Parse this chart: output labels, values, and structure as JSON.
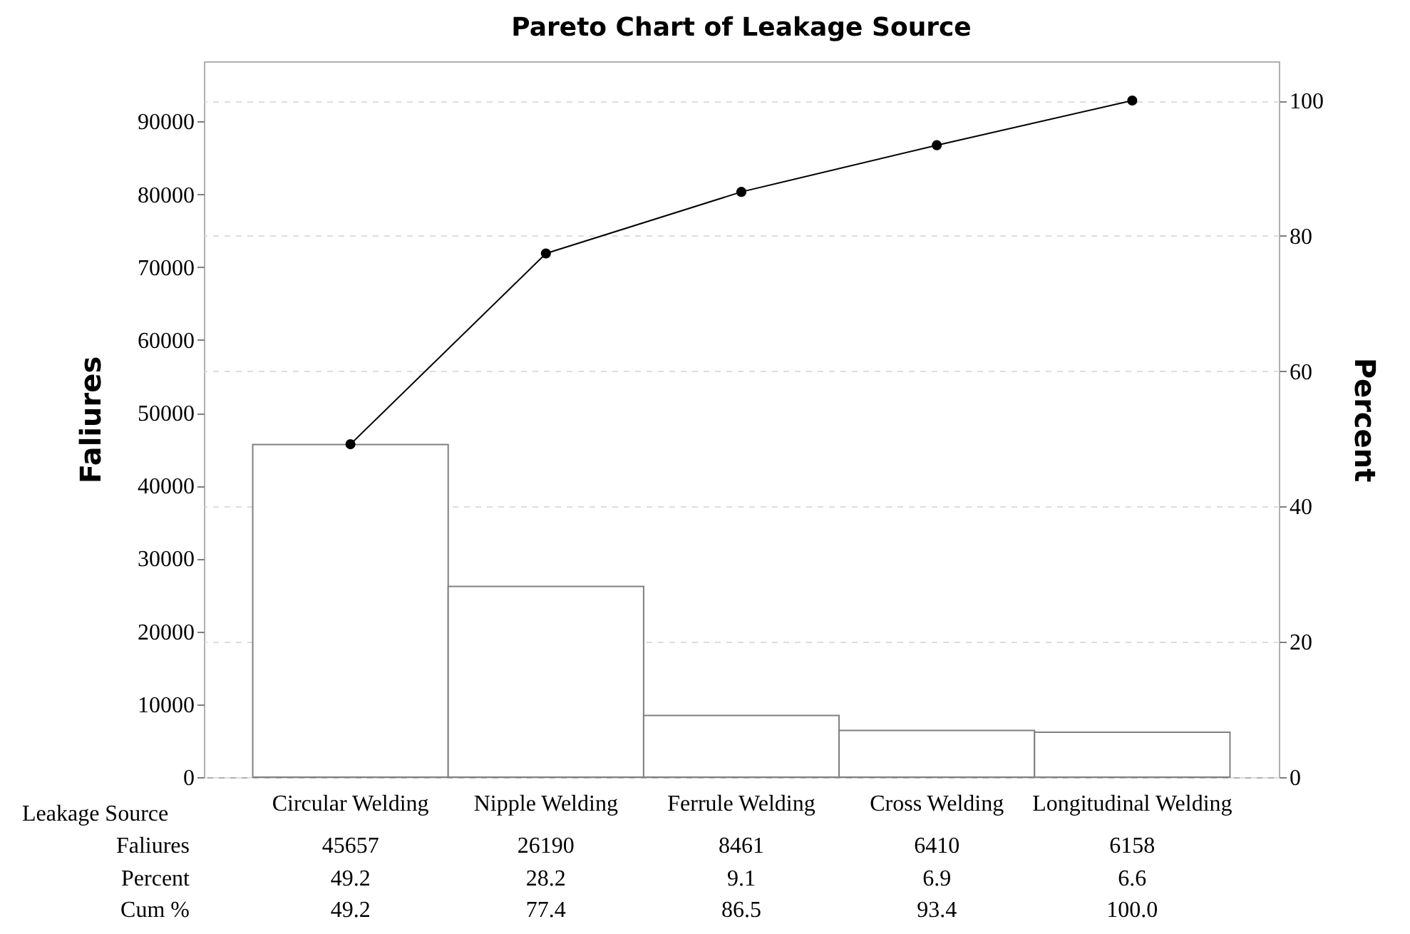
{
  "chart_data": {
    "type": "bar",
    "title": "Pareto Chart of Leakage Source",
    "xlabel": "Leakage Source",
    "ylabel": "Faliures",
    "y2label": "Percent",
    "categories": [
      "Circular Welding",
      "Nipple Welding",
      "Ferrule Welding",
      "Cross Welding",
      "Longitudinal Welding"
    ],
    "series": [
      {
        "type": "bar",
        "color": "#808080",
        "values": [
          45657,
          26190,
          8461,
          6410,
          6158
        ]
      },
      {
        "type": "line",
        "axis": "y2",
        "color": "#000000",
        "values": [
          49.2,
          77.4,
          86.5,
          93.4,
          100
        ],
        "value_labels": [
          "49.2",
          "77.4",
          "86.5",
          "93.4",
          "100.0"
        ]
      }
    ],
    "annotations": [
      "Faliures",
      "Percent",
      "Cum %",
      "49.2",
      "28.2",
      "9.1",
      "6.9",
      "6.6"
    ],
    "ylim": [
      0,
      98260
    ],
    "yticks": [
      0,
      10000,
      20000,
      30000,
      40000,
      50000,
      60000,
      70000,
      80000,
      90000
    ],
    "y2lim": [
      0,
      105.8
    ],
    "y2ticks": [
      0,
      20,
      40,
      60,
      80,
      100
    ],
    "grid": "y2",
    "marker": "circle",
    "line_style": "solid",
    "data_labels": true
  }
}
